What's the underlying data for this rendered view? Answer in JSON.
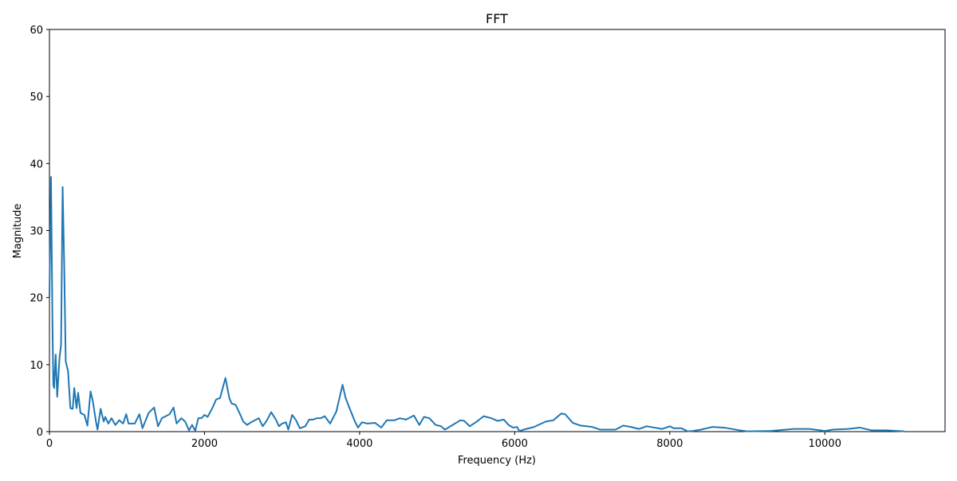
{
  "chart_data": {
    "type": "line",
    "title": "FFT",
    "x_label": "Frequency (Hz)",
    "y_label": "Magnitude",
    "x": [
      0,
      20,
      40,
      50,
      60,
      80,
      100,
      130,
      150,
      170,
      190,
      210,
      240,
      270,
      300,
      320,
      350,
      370,
      400,
      450,
      490,
      530,
      560,
      600,
      620,
      660,
      700,
      720,
      760,
      800,
      850,
      900,
      950,
      990,
      1020,
      1100,
      1160,
      1200,
      1280,
      1350,
      1400,
      1450,
      1550,
      1600,
      1640,
      1700,
      1750,
      1800,
      1840,
      1880,
      1920,
      1960,
      2000,
      2040,
      2100,
      2150,
      2200,
      2270,
      2320,
      2350,
      2400,
      2450,
      2500,
      2550,
      2600,
      2700,
      2750,
      2800,
      2860,
      2920,
      2960,
      3000,
      3050,
      3080,
      3130,
      3180,
      3230,
      3300,
      3350,
      3400,
      3450,
      3500,
      3550,
      3620,
      3700,
      3780,
      3820,
      3870,
      3940,
      3980,
      4030,
      4100,
      4200,
      4280,
      4350,
      4450,
      4520,
      4600,
      4700,
      4770,
      4830,
      4900,
      4980,
      5050,
      5100,
      5200,
      5300,
      5350,
      5420,
      5500,
      5600,
      5700,
      5780,
      5860,
      5920,
      5980,
      6030,
      6060,
      6150,
      6250,
      6400,
      6500,
      6600,
      6650,
      6750,
      6850,
      7000,
      7100,
      7300,
      7400,
      7500,
      7600,
      7700,
      7800,
      7900,
      8000,
      8050,
      8150,
      8230,
      8300,
      8400,
      8550,
      8700,
      8900,
      9000,
      9300,
      9500,
      9600,
      9800,
      10000,
      10100,
      10300,
      10450,
      10600,
      10800,
      11025
    ],
    "series": [
      {
        "name": "FFT",
        "color": "#1f77b4",
        "values": [
          20,
          38,
          15,
          7,
          6.5,
          11.5,
          5.2,
          11,
          13,
          36.5,
          25,
          10.5,
          9,
          3.5,
          3.4,
          6.5,
          3.5,
          5.8,
          2.8,
          2.5,
          0.9,
          6,
          4.5,
          1.5,
          0.3,
          3.4,
          1.5,
          2.2,
          1.2,
          2,
          1,
          1.7,
          1.2,
          2.6,
          1.2,
          1.2,
          2.6,
          0.5,
          2.8,
          3.6,
          0.8,
          2,
          2.6,
          3.6,
          1.2,
          2,
          1.5,
          0.2,
          1,
          0.1,
          2,
          2,
          2.5,
          2.2,
          3.5,
          4.8,
          5,
          8,
          5,
          4.2,
          4,
          2.8,
          1.5,
          1,
          1.4,
          2,
          0.8,
          1.6,
          2.9,
          1.8,
          0.8,
          1.2,
          1.4,
          0.3,
          2.5,
          1.7,
          0.5,
          0.8,
          1.8,
          1.8,
          2,
          2,
          2.3,
          1.2,
          3,
          7,
          5,
          3.5,
          1.5,
          0.6,
          1.4,
          1.2,
          1.3,
          0.6,
          1.7,
          1.7,
          2,
          1.8,
          2.4,
          1,
          2.2,
          2,
          1,
          0.8,
          0.3,
          1,
          1.7,
          1.6,
          0.8,
          1.4,
          2.3,
          2,
          1.6,
          1.8,
          1,
          0.6,
          0.7,
          0.1,
          0.4,
          0.7,
          1.5,
          1.7,
          2.7,
          2.6,
          1.3,
          0.9,
          0.7,
          0.3,
          0.3,
          0.9,
          0.7,
          0.4,
          0.8,
          0.6,
          0.4,
          0.8,
          0.5,
          0.5,
          0.05,
          0.1,
          0.3,
          0.7,
          0.6,
          0.2,
          0.05,
          0.1,
          0.3,
          0.4,
          0.4,
          0.1,
          0.3,
          0.4,
          0.6,
          0.2,
          0.2,
          0.05
        ]
      }
    ],
    "xlim": [
      0,
      11550
    ],
    "ylim": [
      0,
      60
    ],
    "xticks": [
      0,
      2000,
      4000,
      6000,
      8000,
      10000
    ],
    "yticks": [
      0,
      10,
      20,
      30,
      40,
      50,
      60
    ]
  }
}
